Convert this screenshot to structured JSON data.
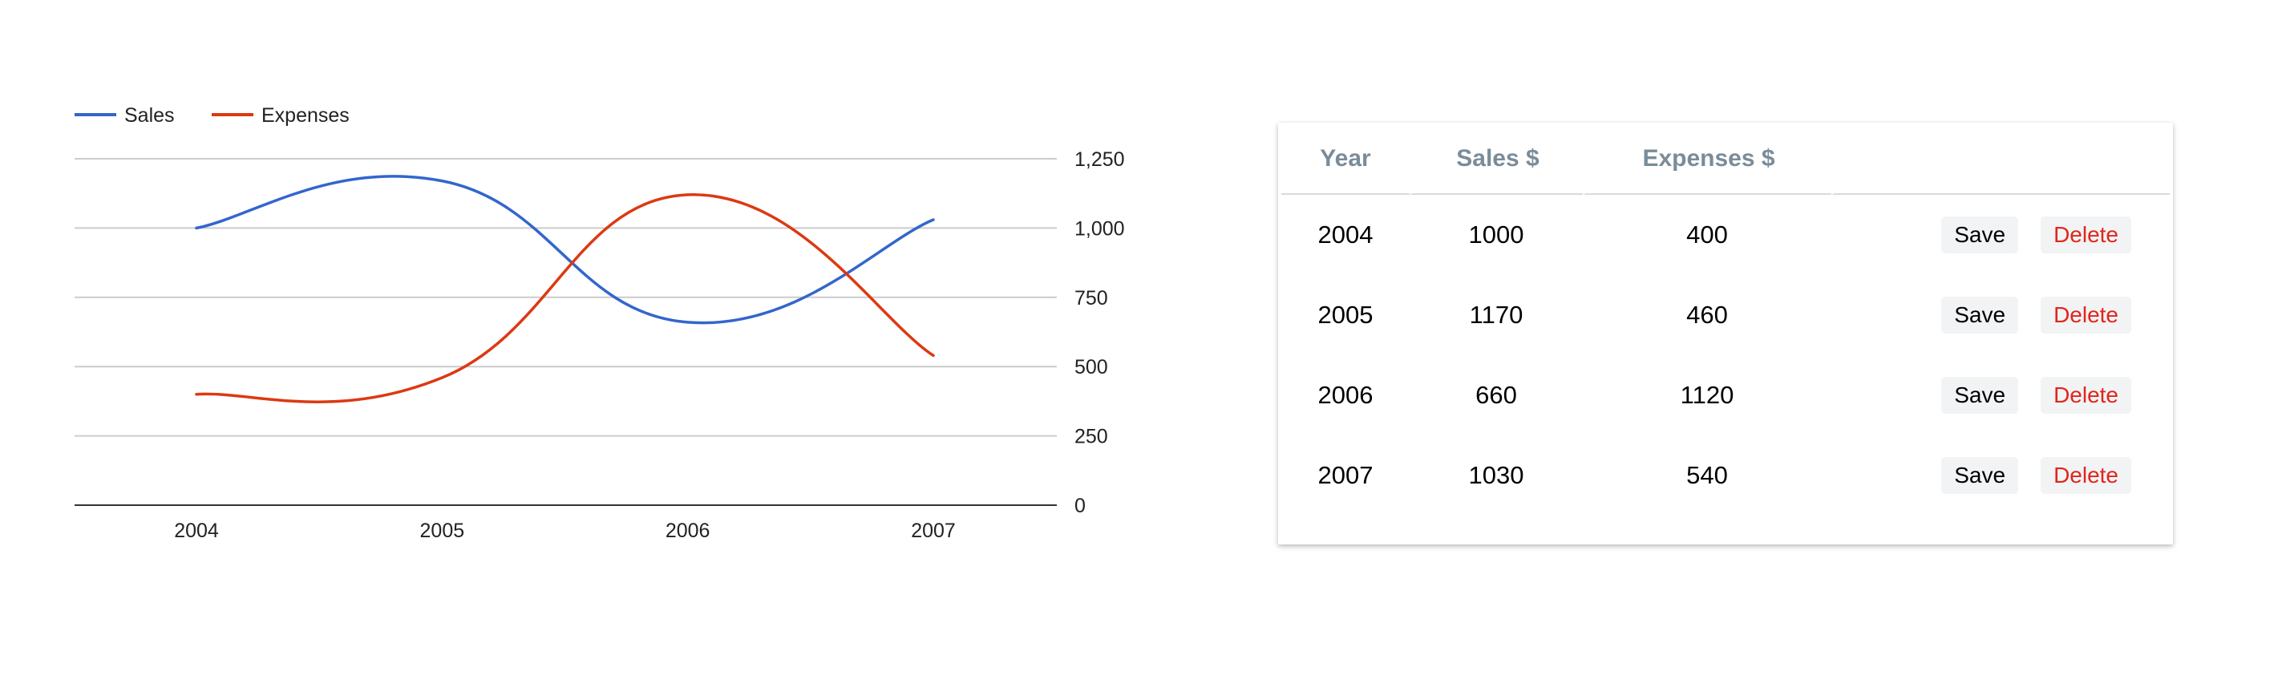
{
  "chart_data": {
    "type": "line",
    "title": "",
    "xlabel": "",
    "ylabel": "",
    "categories": [
      "2004",
      "2005",
      "2006",
      "2007"
    ],
    "series": [
      {
        "name": "Sales",
        "values": [
          1000,
          1170,
          660,
          1030
        ],
        "color": "#3366cc"
      },
      {
        "name": "Expenses",
        "values": [
          400,
          460,
          1120,
          540
        ],
        "color": "#dc3912"
      }
    ],
    "ylim": [
      0,
      1250
    ],
    "yticks": [
      0,
      250,
      500,
      750,
      1000,
      1250
    ],
    "ytick_labels": [
      "0",
      "250",
      "500",
      "750",
      "1,000",
      "1,250"
    ],
    "y_axis_side": "right",
    "grid": true,
    "legend_position": "top-left",
    "smooth": true
  },
  "table": {
    "headers": [
      "Year",
      "Sales $",
      "Expenses $",
      ""
    ],
    "rows": [
      {
        "year": "2004",
        "sales": "1000",
        "expenses": "400"
      },
      {
        "year": "2005",
        "sales": "1170",
        "expenses": "460"
      },
      {
        "year": "2006",
        "sales": "660",
        "expenses": "1120"
      },
      {
        "year": "2007",
        "sales": "1030",
        "expenses": "540"
      }
    ],
    "save_label": "Save",
    "delete_label": "Delete"
  }
}
